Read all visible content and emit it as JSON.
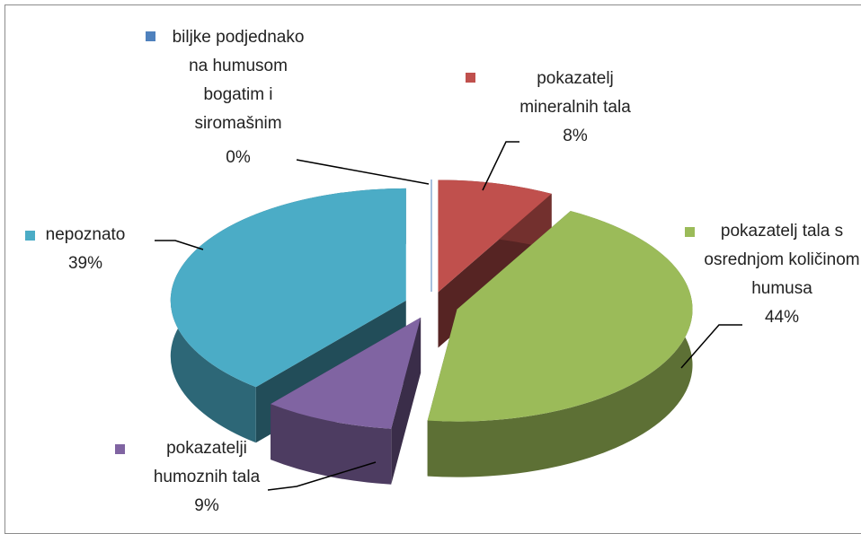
{
  "chart_data": {
    "type": "pie",
    "categories": [
      "biljke podjednako na humusom bogatim i siromašnim",
      "pokazatelj mineralnih tala",
      "pokazatelj tala s osrednjom količinom humusa",
      "pokazatelji humoznih tala",
      "nepoznato"
    ],
    "values": [
      0,
      8,
      44,
      9,
      39
    ],
    "value_labels": [
      "0%",
      "8%",
      "44%",
      "9%",
      "39%"
    ],
    "colors": [
      "#4f81bd",
      "#c0504d",
      "#9bbb59",
      "#8064a2",
      "#4bacc6"
    ],
    "three_d": true,
    "exploded": true
  }
}
